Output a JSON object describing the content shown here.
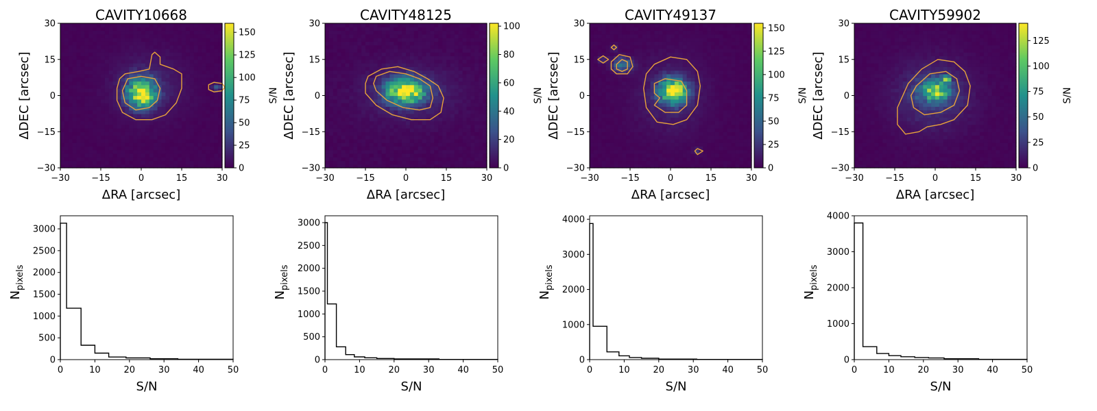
{
  "figure": {
    "colormap_stops": [
      "#440154",
      "#3b528b",
      "#21918c",
      "#5ec962",
      "#fde725"
    ],
    "contour_color": "#e8a33a"
  },
  "chart_data": [
    {
      "type": "heatmap",
      "panel": "map",
      "title": "CAVITY10668",
      "xlabel": "ΔRA [arcsec]",
      "ylabel": "ΔDEC [arcsec]",
      "xlim": [
        -30,
        30
      ],
      "ylim": [
        -30,
        30
      ],
      "xticks": [
        "−30",
        "−15",
        "0",
        "15",
        "30"
      ],
      "yticks": [
        "−30",
        "−15",
        "0",
        "15",
        "30"
      ],
      "colorbar": {
        "label": "S/N",
        "max": 160,
        "ticks": [
          0,
          25,
          50,
          75,
          100,
          125,
          150
        ]
      },
      "sources": [
        {
          "x": 0,
          "y": 1,
          "sx": 3.5,
          "sy": 4,
          "peak": 150
        },
        {
          "x": 2,
          "y": 4,
          "sx": 9,
          "sy": 9,
          "peak": 18
        },
        {
          "x": 28,
          "y": 3.5,
          "sx": 1.2,
          "sy": 1,
          "peak": 40
        }
      ],
      "contours": [
        {
          "points": [
            [
              -6,
              9
            ],
            [
              -1,
              10
            ],
            [
              3,
              11
            ],
            [
              4,
              17
            ],
            [
              5,
              18
            ],
            [
              7,
              16
            ],
            [
              7,
              13
            ],
            [
              12,
              11
            ],
            [
              15,
              9
            ],
            [
              15,
              3
            ],
            [
              13,
              -3
            ],
            [
              9,
              -8
            ],
            [
              4,
              -10
            ],
            [
              -2,
              -10
            ],
            [
              -7,
              -7
            ],
            [
              -9,
              -2
            ],
            [
              -9,
              3
            ],
            [
              -8,
              7
            ]
          ]
        },
        {
          "points": [
            [
              -5,
              7
            ],
            [
              0,
              8
            ],
            [
              5,
              7
            ],
            [
              7,
              3
            ],
            [
              6,
              -2
            ],
            [
              3,
              -5
            ],
            [
              -2,
              -6
            ],
            [
              -6,
              -3
            ],
            [
              -7,
              2
            ]
          ]
        },
        {
          "points": [
            [
              25,
              4.5
            ],
            [
              27,
              5.5
            ],
            [
              30,
              5
            ],
            [
              31,
              3.5
            ],
            [
              30,
              2
            ],
            [
              27,
              1.5
            ],
            [
              25,
              2.5
            ]
          ]
        }
      ]
    },
    {
      "type": "heatmap",
      "panel": "map",
      "title": "CAVITY48125",
      "xlabel": "ΔRA [arcsec]",
      "ylabel": "ΔDEC [arcsec]",
      "xlim": [
        -30,
        30
      ],
      "ylim": [
        -30,
        30
      ],
      "xticks": [
        "−30",
        "−15",
        "0",
        "15",
        "30"
      ],
      "yticks": [
        "−30",
        "−15",
        "0",
        "15",
        "30"
      ],
      "colorbar": {
        "label": "S/N",
        "max": 102,
        "ticks": [
          0,
          20,
          40,
          60,
          80,
          100
        ]
      },
      "sources": [
        {
          "x": 0,
          "y": 2,
          "sx": 5,
          "sy": 3.5,
          "peak": 95
        },
        {
          "x": 1,
          "y": 1,
          "sx": 12,
          "sy": 8,
          "peak": 12
        }
      ],
      "contours": [
        {
          "points": [
            [
              -14,
              8
            ],
            [
              -9,
              11
            ],
            [
              -3,
              12
            ],
            [
              3,
              10
            ],
            [
              8,
              7
            ],
            [
              12,
              4
            ],
            [
              14,
              -1
            ],
            [
              13,
              -7
            ],
            [
              9,
              -10
            ],
            [
              2,
              -10
            ],
            [
              -5,
              -8
            ],
            [
              -11,
              -4
            ],
            [
              -15,
              1
            ],
            [
              -15,
              5
            ]
          ]
        },
        {
          "points": [
            [
              -11,
              8
            ],
            [
              -6,
              10
            ],
            [
              0,
              9
            ],
            [
              5,
              7
            ],
            [
              9,
              4
            ],
            [
              10,
              -1
            ],
            [
              9,
              -5
            ],
            [
              5,
              -6
            ],
            [
              -1,
              -5
            ],
            [
              -7,
              -2
            ],
            [
              -11,
              2
            ],
            [
              -12,
              5
            ]
          ]
        }
      ]
    },
    {
      "type": "heatmap",
      "panel": "map",
      "title": "CAVITY49137",
      "xlabel": "ΔRA [arcsec]",
      "ylabel": "ΔDEC [arcsec]",
      "xlim": [
        -30,
        30
      ],
      "ylim": [
        -30,
        30
      ],
      "xticks": [
        "−30",
        "−15",
        "0",
        "15",
        "30"
      ],
      "yticks": [
        "−30",
        "−15",
        "0",
        "15",
        "30"
      ],
      "colorbar": {
        "label": "S/N",
        "max": 155,
        "ticks": [
          0,
          25,
          50,
          75,
          100,
          125,
          150
        ]
      },
      "sources": [
        {
          "x": 1,
          "y": 2,
          "sx": 3.5,
          "sy": 3.5,
          "peak": 150
        },
        {
          "x": 0,
          "y": 0,
          "sx": 9,
          "sy": 11,
          "peak": 15
        },
        {
          "x": -18,
          "y": 13,
          "sx": 2.5,
          "sy": 2,
          "peak": 60
        },
        {
          "x": -25,
          "y": 15,
          "sx": 1.2,
          "sy": 1,
          "peak": 25
        },
        {
          "x": -21,
          "y": 20,
          "sx": 1,
          "sy": 1,
          "peak": 20
        },
        {
          "x": 10,
          "y": -23,
          "sx": 1,
          "sy": 1,
          "peak": 20
        }
      ],
      "contours": [
        {
          "points": [
            [
              -6,
              13
            ],
            [
              0,
              16
            ],
            [
              6,
              15
            ],
            [
              10,
              10
            ],
            [
              11,
              4
            ],
            [
              10,
              -4
            ],
            [
              6,
              -10
            ],
            [
              1,
              -12
            ],
            [
              -5,
              -11
            ],
            [
              -9,
              -5
            ],
            [
              -10,
              3
            ],
            [
              -9,
              9
            ]
          ]
        },
        {
          "points": [
            [
              -6,
              5
            ],
            [
              -2,
              7
            ],
            [
              4,
              6
            ],
            [
              6,
              2
            ],
            [
              6,
              -4
            ],
            [
              3,
              -7
            ],
            [
              -2,
              -7
            ],
            [
              -6,
              -4
            ],
            [
              -4,
              -1
            ],
            [
              -6,
              1
            ]
          ]
        },
        {
          "points": [
            [
              -22,
              14
            ],
            [
              -19,
              17
            ],
            [
              -15,
              16
            ],
            [
              -14,
              12
            ],
            [
              -16,
              9
            ],
            [
              -20,
              9
            ],
            [
              -22,
              11
            ]
          ]
        },
        {
          "points": [
            [
              -20,
              13
            ],
            [
              -18,
              15
            ],
            [
              -16,
              14
            ],
            [
              -16,
              11
            ],
            [
              -18,
              10
            ],
            [
              -20,
              11
            ]
          ]
        },
        {
          "points": [
            [
              -27,
              15
            ],
            [
              -25,
              16.5
            ],
            [
              -23,
              15
            ],
            [
              -25,
              13.5
            ]
          ]
        },
        {
          "points": [
            [
              -22,
              20
            ],
            [
              -21,
              21
            ],
            [
              -20,
              20
            ],
            [
              -21,
              19
            ]
          ]
        },
        {
          "points": [
            [
              9,
              -23
            ],
            [
              10,
              -22
            ],
            [
              12,
              -23
            ],
            [
              10,
              -24.5
            ]
          ]
        }
      ]
    },
    {
      "type": "heatmap",
      "panel": "map",
      "title": "CAVITY59902",
      "xlabel": "ΔRA [arcsec]",
      "ylabel": "ΔDEC [arcsec]",
      "xlim": [
        -30,
        30
      ],
      "ylim": [
        -30,
        30
      ],
      "xticks": [
        "−30",
        "−15",
        "0",
        "15",
        "30"
      ],
      "yticks": [
        "−30",
        "−15",
        "0",
        "15",
        "30"
      ],
      "colorbar": {
        "label": "S/N",
        "max": 142,
        "ticks": [
          0,
          25,
          50,
          75,
          100,
          125
        ]
      },
      "sources": [
        {
          "x": 0,
          "y": 2,
          "sx": 4,
          "sy": 3,
          "peak": 100
        },
        {
          "x": 4,
          "y": 7,
          "sx": 1,
          "sy": 1,
          "peak": 130
        },
        {
          "x": -1,
          "y": 0,
          "sx": 10,
          "sy": 10,
          "peak": 22
        }
      ],
      "contours": [
        {
          "points": [
            [
              -10,
              5
            ],
            [
              -5,
              11
            ],
            [
              1,
              15
            ],
            [
              7,
              14
            ],
            [
              11,
              10
            ],
            [
              13,
              4
            ],
            [
              12,
              -4
            ],
            [
              7,
              -10
            ],
            [
              2,
              -12
            ],
            [
              -3,
              -13
            ],
            [
              -6,
              -15
            ],
            [
              -11,
              -16
            ],
            [
              -14,
              -12
            ],
            [
              -14,
              -5
            ]
          ]
        },
        {
          "points": [
            [
              -7,
              4
            ],
            [
              -2,
              9
            ],
            [
              4,
              10
            ],
            [
              8,
              7
            ],
            [
              9,
              2
            ],
            [
              7,
              -4
            ],
            [
              2,
              -7
            ],
            [
              -4,
              -8
            ],
            [
              -8,
              -5
            ],
            [
              -9,
              0
            ]
          ]
        }
      ]
    },
    {
      "type": "bar",
      "panel": "histogram",
      "xlabel": "S/N",
      "ylabel": "N",
      "ylabel_sub": "pixels",
      "xlim": [
        0,
        50
      ],
      "ylim": [
        0,
        3300
      ],
      "xticks": [
        0,
        10,
        20,
        30,
        40,
        50
      ],
      "yticks": [
        0,
        500,
        1000,
        1500,
        2000,
        2500,
        3000
      ],
      "bin_edges": [
        0,
        1.8,
        6,
        10,
        14,
        19,
        26,
        34,
        50
      ],
      "values": [
        3130,
        1180,
        330,
        150,
        60,
        40,
        20,
        8
      ]
    },
    {
      "type": "bar",
      "panel": "histogram",
      "xlabel": "S/N",
      "ylabel": "N",
      "ylabel_sub": "pixels",
      "xlim": [
        0,
        50
      ],
      "ylim": [
        0,
        3150
      ],
      "xticks": [
        0,
        10,
        20,
        30,
        40,
        50
      ],
      "yticks": [
        0,
        500,
        1000,
        1500,
        2000,
        2500,
        3000
      ],
      "bin_edges": [
        0,
        0.7,
        3.3,
        6,
        8.5,
        11.5,
        15,
        20,
        33,
        50
      ],
      "values": [
        3000,
        1220,
        280,
        110,
        60,
        40,
        25,
        15,
        5
      ]
    },
    {
      "type": "bar",
      "panel": "histogram",
      "xlabel": "S/N",
      "ylabel": "N",
      "ylabel_sub": "pixels",
      "xlim": [
        0,
        50
      ],
      "ylim": [
        0,
        4100
      ],
      "xticks": [
        0,
        10,
        20,
        30,
        40,
        50
      ],
      "yticks": [
        0,
        1000,
        2000,
        3000,
        4000
      ],
      "bin_edges": [
        0,
        1,
        5,
        8.5,
        11.5,
        15,
        20,
        31,
        50
      ],
      "values": [
        3880,
        950,
        220,
        110,
        60,
        40,
        15,
        5
      ]
    },
    {
      "type": "bar",
      "panel": "histogram",
      "xlabel": "S/N",
      "ylabel": "N",
      "ylabel_sub": "pixels",
      "xlim": [
        0,
        50
      ],
      "ylim": [
        0,
        4000
      ],
      "xticks": [
        0,
        10,
        20,
        30,
        40,
        50
      ],
      "yticks": [
        0,
        1000,
        2000,
        3000,
        4000
      ],
      "bin_edges": [
        0,
        2.5,
        6.5,
        10,
        13.5,
        17.5,
        21.5,
        26,
        36,
        50
      ],
      "values": [
        3800,
        360,
        170,
        110,
        80,
        60,
        45,
        25,
        8
      ]
    }
  ]
}
